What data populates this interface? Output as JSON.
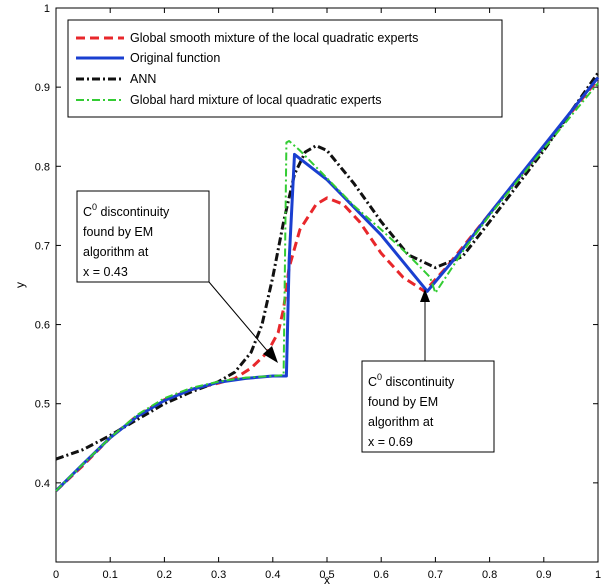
{
  "chart_data": {
    "type": "line",
    "xlabel": "x",
    "ylabel": "y",
    "xlim": [
      0,
      1
    ],
    "ylim": [
      0.3,
      1
    ],
    "xticks": [
      "0",
      "0.1",
      "0.2",
      "0.3",
      "0.4",
      "0.5",
      "0.6",
      "0.7",
      "0.8",
      "0.9",
      "1"
    ],
    "yticks": [
      "0.4",
      "0.5",
      "0.6",
      "0.7",
      "0.8",
      "0.9",
      "1"
    ],
    "legend_position": "top-left",
    "series": [
      {
        "name": "Global smooth mixture of the local quadratic experts",
        "color": "#e8272b",
        "style": "dashed",
        "x": [
          0,
          0.05,
          0.1,
          0.15,
          0.2,
          0.25,
          0.3,
          0.33,
          0.36,
          0.39,
          0.41,
          0.42,
          0.43,
          0.45,
          0.48,
          0.5,
          0.53,
          0.56,
          0.6,
          0.64,
          0.68,
          0.72,
          0.8,
          0.9,
          1.0
        ],
        "y": [
          0.39,
          0.422,
          0.457,
          0.485,
          0.505,
          0.518,
          0.526,
          0.532,
          0.545,
          0.565,
          0.59,
          0.62,
          0.672,
          0.72,
          0.752,
          0.76,
          0.752,
          0.73,
          0.69,
          0.66,
          0.642,
          0.672,
          0.74,
          0.825,
          0.91
        ]
      },
      {
        "name": "Original function",
        "color": "#1a3fd0",
        "style": "solid",
        "x": [
          0,
          0.05,
          0.1,
          0.15,
          0.2,
          0.25,
          0.3,
          0.35,
          0.4,
          0.425,
          0.43,
          0.44,
          0.5,
          0.6,
          0.685,
          0.75,
          0.8,
          0.9,
          1.0
        ],
        "y": [
          0.39,
          0.424,
          0.457,
          0.484,
          0.504,
          0.518,
          0.527,
          0.532,
          0.535,
          0.535,
          0.68,
          0.815,
          0.783,
          0.713,
          0.642,
          0.695,
          0.74,
          0.826,
          0.912
        ]
      },
      {
        "name": "ANN",
        "color": "#111111",
        "style": "dash-dot",
        "x": [
          0,
          0.05,
          0.1,
          0.15,
          0.2,
          0.25,
          0.3,
          0.33,
          0.36,
          0.38,
          0.4,
          0.42,
          0.44,
          0.46,
          0.48,
          0.5,
          0.55,
          0.6,
          0.65,
          0.7,
          0.75,
          0.8,
          0.9,
          1.0
        ],
        "y": [
          0.43,
          0.442,
          0.46,
          0.48,
          0.5,
          0.515,
          0.528,
          0.54,
          0.565,
          0.6,
          0.66,
          0.73,
          0.79,
          0.818,
          0.826,
          0.82,
          0.778,
          0.73,
          0.688,
          0.672,
          0.686,
          0.73,
          0.82,
          0.918
        ]
      },
      {
        "name": "Global hard mixture of local quadratic experts",
        "color": "#33cc33",
        "style": "dash-dot",
        "x": [
          0,
          0.05,
          0.1,
          0.15,
          0.2,
          0.25,
          0.3,
          0.35,
          0.4,
          0.42,
          0.425,
          0.43,
          0.45,
          0.5,
          0.55,
          0.6,
          0.65,
          0.69,
          0.7,
          0.75,
          0.8,
          0.9,
          1.0
        ],
        "y": [
          0.39,
          0.424,
          0.457,
          0.486,
          0.507,
          0.52,
          0.528,
          0.533,
          0.535,
          0.536,
          0.83,
          0.832,
          0.82,
          0.785,
          0.75,
          0.72,
          0.688,
          0.66,
          0.64,
          0.692,
          0.738,
          0.822,
          0.905
        ]
      }
    ],
    "annotations": [
      {
        "lines": [
          "C0 discontinuity",
          "found by EM",
          " algorithm at",
          "x = 0.43"
        ],
        "target": [
          0.42,
          0.555
        ]
      },
      {
        "lines": [
          "C0 discontinuity",
          "found by EM",
          "algorithm at",
          "x = 0.69"
        ],
        "target": [
          0.68,
          0.638
        ]
      }
    ]
  }
}
